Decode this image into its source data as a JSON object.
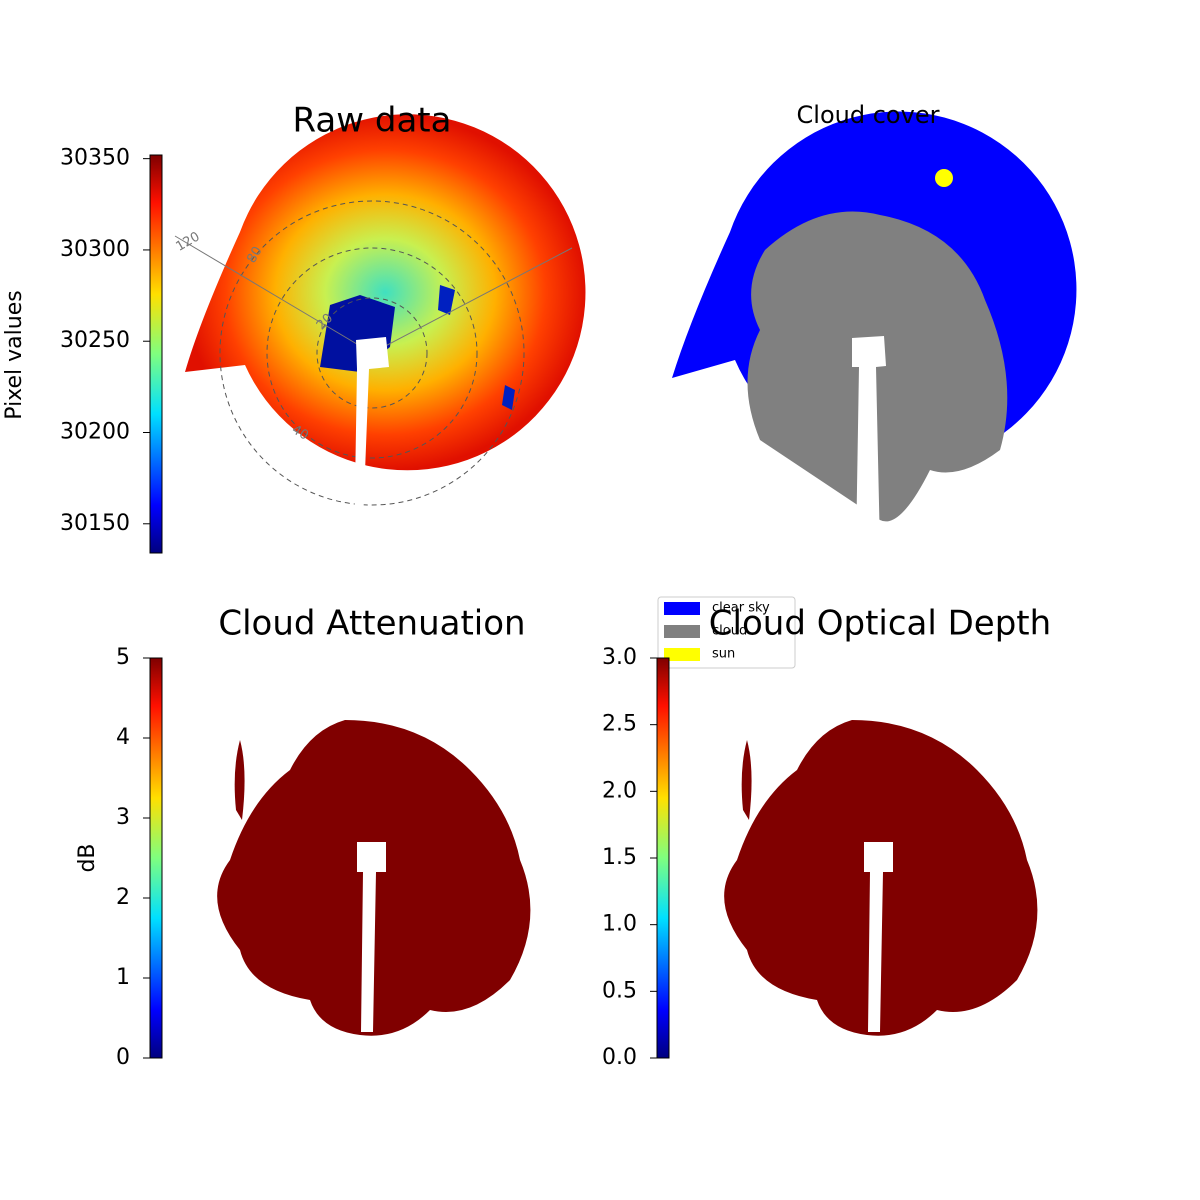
{
  "chart_data": [
    {
      "type": "image",
      "title": "Raw data",
      "polar_labels": [
        "120",
        "80",
        "20",
        "40"
      ],
      "colorbar": {
        "label": "Pixel values",
        "lim": [
          30134,
          30352
        ],
        "ticks": [
          30150,
          30200,
          30250,
          30300,
          30350
        ]
      }
    },
    {
      "type": "image",
      "title": "Cloud cover",
      "legend": [
        {
          "name": "clear sky",
          "color": "#0000ff"
        },
        {
          "name": "cloud",
          "color": "#808080"
        },
        {
          "name": "sun",
          "color": "#ffff00"
        }
      ]
    },
    {
      "type": "image",
      "title": "Cloud Attenuation",
      "colorbar": {
        "label": "dB",
        "lim": [
          0,
          5
        ],
        "ticks": [
          0,
          1,
          2,
          3,
          4,
          5
        ]
      }
    },
    {
      "type": "image",
      "title": "Cloud Optical Depth",
      "colorbar": {
        "lim": [
          0,
          3
        ],
        "ticks": [
          {
            "value": 0,
            "label": "0.0"
          },
          {
            "value": 0.5,
            "label": "0.5"
          },
          {
            "value": 1,
            "label": "1.0"
          },
          {
            "value": 1.5,
            "label": "1.5"
          },
          {
            "value": 2,
            "label": "2.0"
          },
          {
            "value": 2.5,
            "label": "2.5"
          },
          {
            "value": 3,
            "label": "3.0"
          }
        ]
      }
    }
  ]
}
